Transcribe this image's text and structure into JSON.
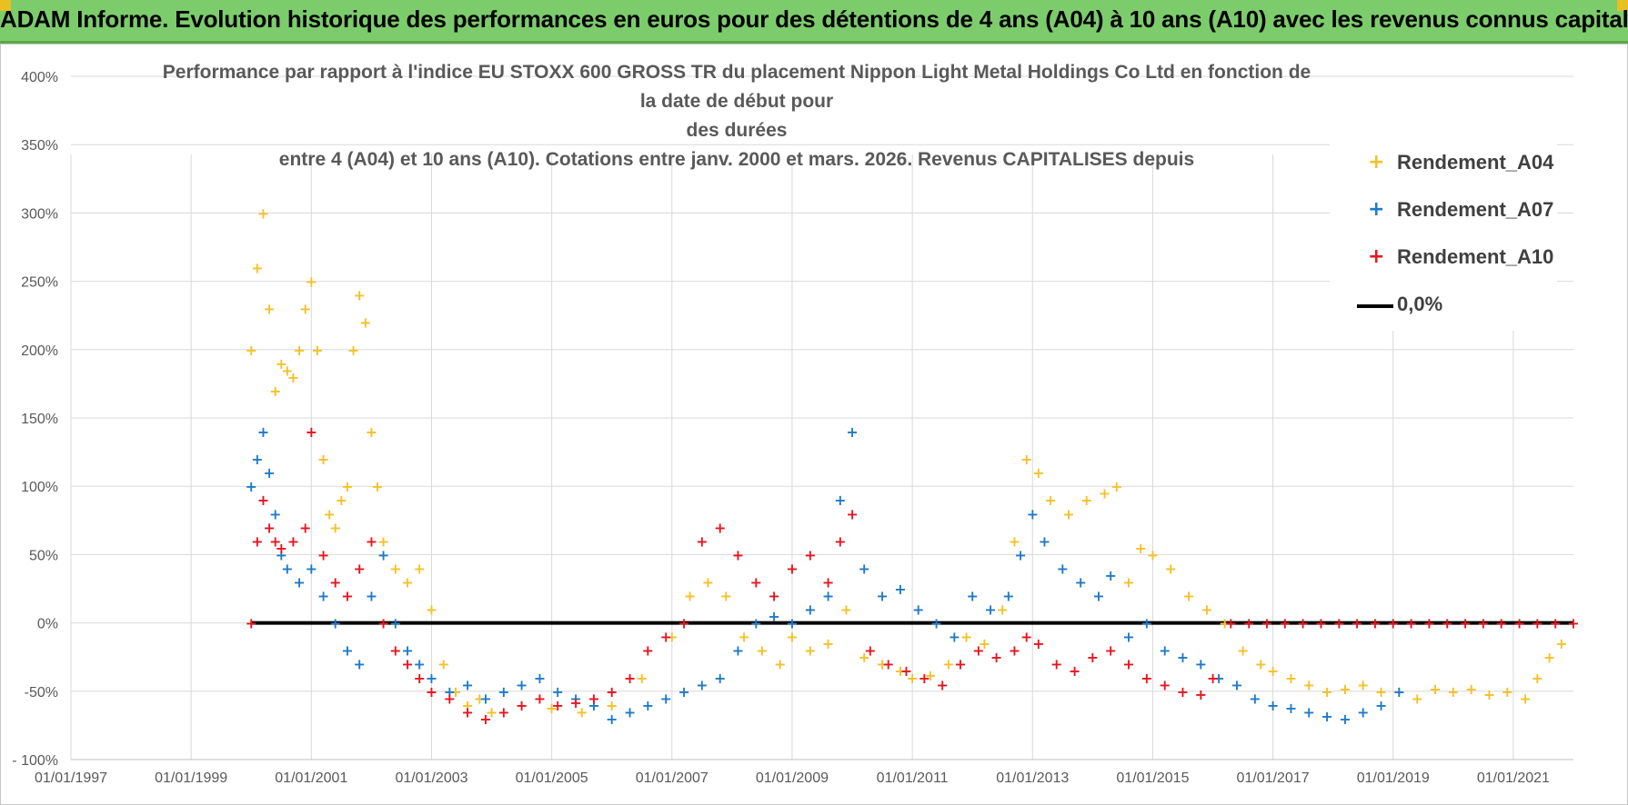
{
  "banner": {
    "title": "ADAM Informe. Evolution historique des performances en euros pour des détentions de 4 ans (A04) à 10 ans (A10) avec les revenus connus capitalisés"
  },
  "colors": {
    "A04": "#f5c02a",
    "A07": "#1f7ac8",
    "A10": "#e8141e",
    "zero": "#000000",
    "banner": "#7ccc6c"
  },
  "chart_data": {
    "type": "scatter",
    "title_lines": [
      "Performance par rapport à l'indice EU STOXX 600 GROSS TR  du placement Nippon Light Metal Holdings Co Ltd en fonction de la date de début pour",
      "des durées",
      "entre 4 (A04) et 10 ans (A10). Cotations entre janv. 2000 et mars. 2026. Revenus CAPITALISES depuis"
    ],
    "x_tick_labels": [
      "01/01/1997",
      "01/01/1999",
      "01/01/2001",
      "01/01/2003",
      "01/01/2005",
      "01/01/2007",
      "01/01/2009",
      "01/01/2011",
      "01/01/2013",
      "01/01/2015",
      "01/01/2017",
      "01/01/2019",
      "01/01/2021"
    ],
    "x_range": [
      1997.0,
      2022.0
    ],
    "y_tick_labels": [
      "- 100%",
      "-50%",
      "0%",
      "50%",
      "100%",
      "150%",
      "200%",
      "250%",
      "300%",
      "350%",
      "400%"
    ],
    "ylim": [
      -100,
      400
    ],
    "y_step": 50,
    "legend": [
      {
        "key": "A04",
        "label": "Rendement_A04",
        "marker": "+"
      },
      {
        "key": "A07",
        "label": "Rendement_A07",
        "marker": "+"
      },
      {
        "key": "A10",
        "label": "Rendement_A10",
        "marker": "+"
      },
      {
        "key": "zero",
        "label": "0,0%",
        "marker": "line"
      }
    ],
    "series": [
      {
        "name": "Rendement_A04",
        "key": "A04",
        "x": [
          2000.0,
          2000.1,
          2000.2,
          2000.3,
          2000.4,
          2000.5,
          2000.6,
          2000.7,
          2000.8,
          2000.9,
          2001.0,
          2001.1,
          2001.2,
          2001.3,
          2001.4,
          2001.5,
          2001.6,
          2001.7,
          2001.8,
          2001.9,
          2002.0,
          2002.1,
          2002.2,
          2002.4,
          2002.6,
          2002.8,
          2003.0,
          2003.2,
          2003.4,
          2003.6,
          2003.8,
          2004.0,
          2004.5,
          2005.0,
          2005.5,
          2006.0,
          2006.5,
          2007.0,
          2007.3,
          2007.6,
          2007.9,
          2008.2,
          2008.5,
          2008.8,
          2009.0,
          2009.3,
          2009.6,
          2009.9,
          2010.2,
          2010.5,
          2010.8,
          2011.0,
          2011.3,
          2011.6,
          2011.9,
          2012.2,
          2012.5,
          2012.7,
          2012.9,
          2013.1,
          2013.3,
          2013.6,
          2013.9,
          2014.2,
          2014.4,
          2014.6,
          2014.8,
          2015.0,
          2015.3,
          2015.6,
          2015.9,
          2016.2,
          2016.5,
          2016.8,
          2017.0,
          2017.3,
          2017.6,
          2017.9,
          2018.2,
          2018.5,
          2018.8,
          2019.1,
          2019.4,
          2019.7,
          2020.0,
          2020.3,
          2020.6,
          2020.9,
          2021.2,
          2021.4,
          2021.6,
          2021.8
        ],
        "y": [
          200,
          260,
          300,
          230,
          170,
          190,
          185,
          180,
          200,
          230,
          250,
          200,
          120,
          80,
          70,
          90,
          100,
          200,
          240,
          220,
          140,
          100,
          60,
          40,
          30,
          40,
          10,
          -30,
          -50,
          -60,
          -55,
          -65,
          -60,
          -62,
          -65,
          -60,
          -40,
          -10,
          20,
          30,
          20,
          -10,
          -20,
          -30,
          -10,
          -20,
          -15,
          10,
          -25,
          -30,
          -35,
          -40,
          -38,
          -30,
          -10,
          -15,
          10,
          60,
          120,
          110,
          90,
          80,
          90,
          95,
          100,
          30,
          55,
          50,
          40,
          20,
          10,
          0,
          -20,
          -30,
          -35,
          -40,
          -45,
          -50,
          -48,
          -45,
          -50,
          -50,
          -55,
          -48,
          -50,
          -48,
          -52,
          -50,
          -55,
          -40,
          -25,
          -15
        ]
      },
      {
        "name": "Rendement_A07",
        "key": "A07",
        "x": [
          2000.0,
          2000.1,
          2000.2,
          2000.3,
          2000.4,
          2000.5,
          2000.6,
          2000.8,
          2001.0,
          2001.2,
          2001.4,
          2001.6,
          2001.8,
          2002.0,
          2002.2,
          2002.4,
          2002.6,
          2002.8,
          2003.0,
          2003.3,
          2003.6,
          2003.9,
          2004.2,
          2004.5,
          2004.8,
          2005.1,
          2005.4,
          2005.7,
          2006.0,
          2006.3,
          2006.6,
          2006.9,
          2007.2,
          2007.5,
          2007.8,
          2008.1,
          2008.4,
          2008.7,
          2009.0,
          2009.3,
          2009.6,
          2009.8,
          2010.0,
          2010.2,
          2010.5,
          2010.8,
          2011.1,
          2011.4,
          2011.7,
          2012.0,
          2012.3,
          2012.6,
          2012.8,
          2013.0,
          2013.2,
          2013.5,
          2013.8,
          2014.1,
          2014.3,
          2014.6,
          2014.9,
          2015.2,
          2015.5,
          2015.8,
          2016.1,
          2016.4,
          2016.7,
          2017.0,
          2017.3,
          2017.6,
          2017.9,
          2018.2,
          2018.5,
          2018.8,
          2019.1
        ],
        "y": [
          100,
          120,
          140,
          110,
          80,
          50,
          40,
          30,
          40,
          20,
          0,
          -20,
          -30,
          20,
          50,
          0,
          -20,
          -30,
          -40,
          -50,
          -45,
          -55,
          -50,
          -45,
          -40,
          -50,
          -55,
          -60,
          -70,
          -65,
          -60,
          -55,
          -50,
          -45,
          -40,
          -20,
          0,
          5,
          0,
          10,
          20,
          90,
          140,
          40,
          20,
          25,
          10,
          0,
          -10,
          20,
          10,
          20,
          50,
          80,
          60,
          40,
          30,
          20,
          35,
          -10,
          0,
          -20,
          -25,
          -30,
          -40,
          -45,
          -55,
          -60,
          -62,
          -65,
          -68,
          -70,
          -65,
          -60,
          -50
        ]
      },
      {
        "name": "Rendement_A10",
        "key": "A10",
        "x": [
          2000.0,
          2000.1,
          2000.2,
          2000.3,
          2000.4,
          2000.5,
          2000.7,
          2000.9,
          2001.0,
          2001.2,
          2001.4,
          2001.6,
          2001.8,
          2002.0,
          2002.2,
          2002.4,
          2002.6,
          2002.8,
          2003.0,
          2003.3,
          2003.6,
          2003.9,
          2004.2,
          2004.5,
          2004.8,
          2005.1,
          2005.4,
          2005.7,
          2006.0,
          2006.3,
          2006.6,
          2006.9,
          2007.2,
          2007.5,
          2007.8,
          2008.1,
          2008.4,
          2008.7,
          2009.0,
          2009.3,
          2009.6,
          2009.8,
          2010.0,
          2010.3,
          2010.6,
          2010.9,
          2011.2,
          2011.5,
          2011.8,
          2012.1,
          2012.4,
          2012.7,
          2012.9,
          2013.1,
          2013.4,
          2013.7,
          2014.0,
          2014.3,
          2014.6,
          2014.9,
          2015.2,
          2015.5,
          2015.8,
          2016.0,
          2016.3,
          2016.6,
          2016.9,
          2017.2,
          2017.5,
          2017.8,
          2018.1,
          2018.4,
          2018.7,
          2019.0,
          2019.3,
          2019.6,
          2019.9,
          2020.2,
          2020.5,
          2020.8,
          2021.1,
          2021.4,
          2021.7,
          2022.0
        ],
        "y": [
          0,
          60,
          90,
          70,
          60,
          55,
          60,
          70,
          140,
          50,
          30,
          20,
          40,
          60,
          0,
          -20,
          -30,
          -40,
          -50,
          -55,
          -65,
          -70,
          -65,
          -60,
          -55,
          -60,
          -58,
          -55,
          -50,
          -40,
          -20,
          -10,
          0,
          60,
          70,
          50,
          30,
          20,
          40,
          50,
          30,
          60,
          80,
          -20,
          -30,
          -35,
          -40,
          -45,
          -30,
          -20,
          -25,
          -20,
          -10,
          -15,
          -30,
          -35,
          -25,
          -20,
          -30,
          -40,
          -45,
          -50,
          -52,
          -40,
          0,
          0,
          0,
          0,
          0,
          0,
          0,
          0,
          0,
          0,
          0,
          0,
          0,
          0,
          0,
          0,
          0,
          0,
          0,
          0
        ]
      }
    ]
  }
}
